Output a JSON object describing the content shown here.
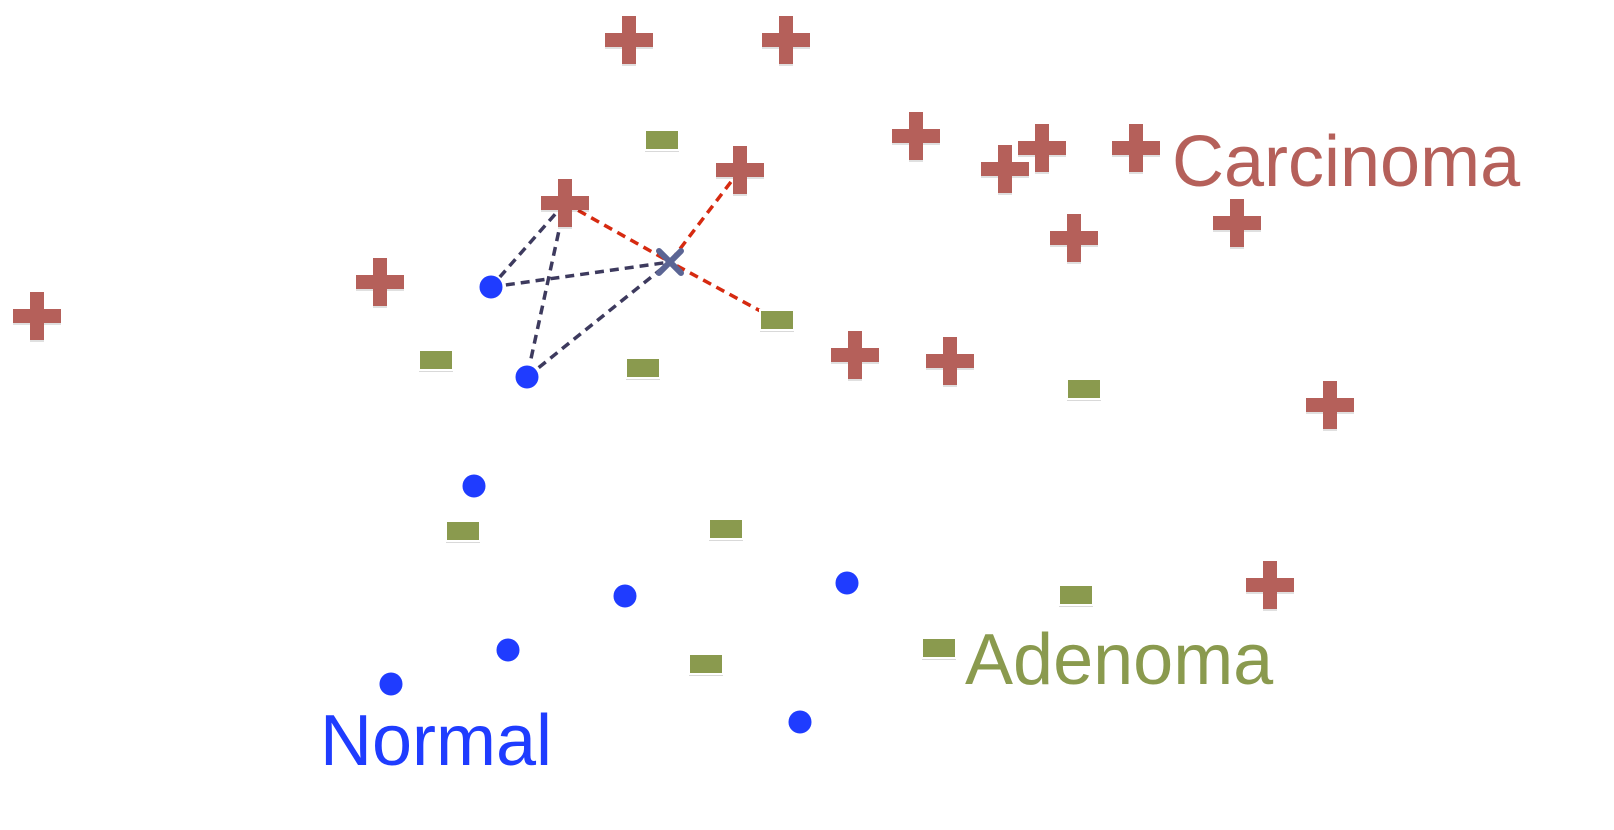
{
  "colors": {
    "carcinoma": "#b5605a",
    "adenoma": "#8a9a4e",
    "normal": "#1f3cff",
    "query": "#5b6594",
    "link_neighbor": "#d62a10",
    "link_other": "#3d3a5e"
  },
  "labels": {
    "carcinoma": "Carcinoma",
    "adenoma": "Adenoma",
    "normal": "Normal"
  },
  "icons": {
    "carcinoma": "plus-icon",
    "adenoma": "minus-icon",
    "normal": "dot-icon",
    "query": "cross-icon"
  }
}
